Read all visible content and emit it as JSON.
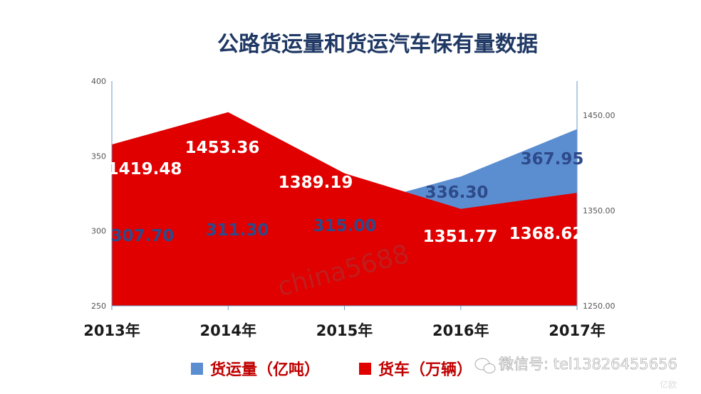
{
  "colors": {
    "freight": "#5b8ed0",
    "truck": "#e00000",
    "title": "#1f3864",
    "legend_text": "#c00000",
    "freight_label": "#2e4a8a"
  },
  "chart_data": {
    "type": "area",
    "title": "公路货运量和货运汽车保有量数据",
    "categories": [
      "2013年",
      "2014年",
      "2015年",
      "2016年",
      "2017年"
    ],
    "series": [
      {
        "name": "货运量（亿吨）",
        "axis": "left",
        "values": [
          307.7,
          311.3,
          315.0,
          336.3,
          367.95
        ],
        "labels": [
          "307.70",
          "311.30",
          "315.00",
          "336.30",
          "367.95"
        ]
      },
      {
        "name": "货车（万辆）",
        "axis": "right",
        "values": [
          1419.48,
          1453.36,
          1389.19,
          1351.77,
          1368.62
        ],
        "labels": [
          "1419.48",
          "1453.36",
          "1389.19",
          "1351.77",
          "1368.62"
        ]
      }
    ],
    "y_left": {
      "ylim": [
        250,
        400
      ],
      "ticks": [
        "250",
        "300",
        "350",
        "400"
      ]
    },
    "y_right": {
      "ylim": [
        1250,
        1486
      ],
      "ticks": [
        "1250.00",
        "1350.00",
        "1450.00"
      ]
    },
    "legend": {
      "position": "bottom"
    },
    "grid": false
  },
  "watermark": "china5688",
  "overlay": {
    "wechat": "微信号: tel13826455656",
    "brand": "亿欧"
  }
}
